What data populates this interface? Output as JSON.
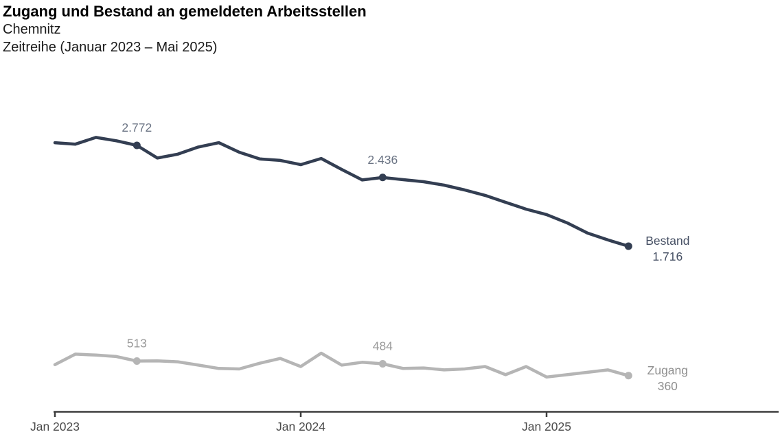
{
  "header": {
    "title": "Zugang und Bestand an gemeldeten Arbeitsstellen",
    "region": "Chemnitz",
    "period": "Zeitreihe (Januar 2023 – Mai 2025)"
  },
  "chart_data": {
    "type": "line",
    "title": "Zugang und Bestand an gemeldeten Arbeitsstellen",
    "subtitle": "Chemnitz",
    "period": "Zeitreihe (Januar 2023 – Mai 2025)",
    "grid": false,
    "y_axis_visible": false,
    "ylim_estimate": [
      250,
      2950
    ],
    "categories": [
      "Jan 2023",
      "Feb 2023",
      "Mär 2023",
      "Apr 2023",
      "Mai 2023",
      "Jun 2023",
      "Jul 2023",
      "Aug 2023",
      "Sep 2023",
      "Okt 2023",
      "Nov 2023",
      "Dez 2023",
      "Jan 2024",
      "Feb 2024",
      "Mär 2024",
      "Apr 2024",
      "Mai 2024",
      "Jun 2024",
      "Jul 2024",
      "Aug 2024",
      "Sep 2024",
      "Okt 2024",
      "Nov 2024",
      "Dez 2024",
      "Jan 2025",
      "Feb 2025",
      "Mär 2025",
      "Apr 2025",
      "Mai 2025"
    ],
    "series": [
      {
        "name": "Bestand",
        "color": "#333e52",
        "point_label_color": "#6b7484",
        "end_label_color": "#454f63",
        "values": [
          2800,
          2785,
          2855,
          2820,
          2772,
          2640,
          2680,
          2755,
          2800,
          2700,
          2630,
          2615,
          2570,
          2635,
          2520,
          2410,
          2436,
          2413,
          2391,
          2355,
          2305,
          2248,
          2176,
          2104,
          2047,
          1961,
          1853,
          1781,
          1716
        ],
        "labeled_points": [
          {
            "index": 4,
            "label": "2.772"
          },
          {
            "index": 16,
            "label": "2.436"
          }
        ],
        "end_label": [
          "Bestand",
          "1.716"
        ]
      },
      {
        "name": "Zugang",
        "color": "#b5b5b5",
        "point_label_color": "#9a9a9a",
        "end_label_color": "#8f8f8f",
        "values": [
          475,
          585,
          575,
          560,
          513,
          515,
          505,
          470,
          435,
          430,
          490,
          540,
          455,
          595,
          470,
          500,
          484,
          435,
          440,
          420,
          430,
          455,
          370,
          455,
          345,
          370,
          395,
          420,
          360
        ],
        "labeled_points": [
          {
            "index": 4,
            "label": "513"
          },
          {
            "index": 16,
            "label": "484"
          }
        ],
        "end_label": [
          "Zugang",
          "360"
        ]
      }
    ],
    "x_axis": {
      "color": "#3d3d3d",
      "label_color": "#4b4b4b",
      "ticks": [
        {
          "index": 0,
          "label": "Jan 2023"
        },
        {
          "index": 12,
          "label": "Jan 2024"
        },
        {
          "index": 24,
          "label": "Jan 2025"
        }
      ]
    }
  }
}
